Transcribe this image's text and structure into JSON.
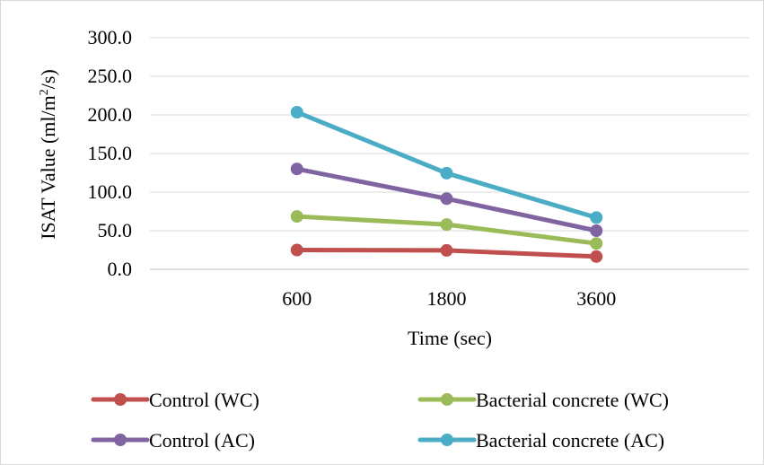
{
  "chart_data": {
    "type": "line",
    "title": "",
    "xlabel": "Time (sec)",
    "ylabel": "ISAT Value (ml/m²/s)",
    "categories": [
      "600",
      "1800",
      "3600"
    ],
    "ylim": [
      0,
      300
    ],
    "yticks": [
      "0.0",
      "50.0",
      "100.0",
      "150.0",
      "200.0",
      "250.0",
      "300.0"
    ],
    "grid": true,
    "legend_position": "bottom",
    "series": [
      {
        "name": "Control (WC)",
        "color": "#c0504d",
        "values": [
          25,
          24.5,
          16.5
        ]
      },
      {
        "name": "Bacterial concrete (WC)",
        "color": "#9bbb59",
        "values": [
          68.5,
          58,
          33.5
        ]
      },
      {
        "name": "Control (AC)",
        "color": "#8064a2",
        "values": [
          130,
          91.5,
          50
        ]
      },
      {
        "name": "Bacterial concrete (AC)",
        "color": "#4bacc6",
        "values": [
          203.5,
          124.5,
          67
        ]
      }
    ]
  }
}
